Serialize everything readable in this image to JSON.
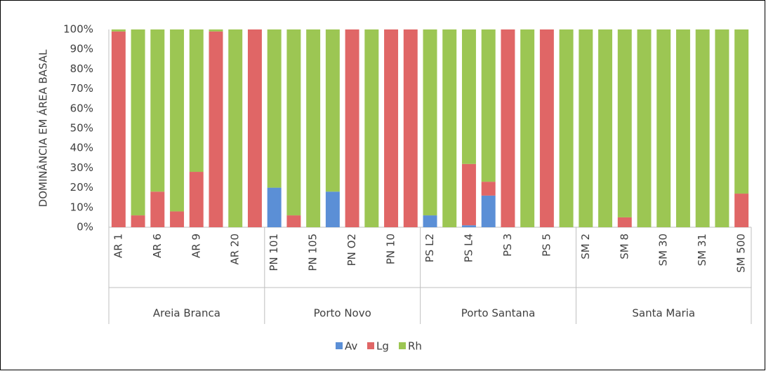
{
  "chart_data": {
    "type": "stacked_bar",
    "y_label": "DOMINÂNCIA EM ÁREA BASAL",
    "groups": [
      {
        "name": "Areia Branca",
        "categories": [
          "AR 1",
          null,
          "AR 6",
          null,
          "AR 9",
          null,
          "AR 20",
          null
        ]
      },
      {
        "name": "Porto Novo",
        "categories": [
          "PN 101",
          null,
          "PN 105",
          null,
          "PN O2",
          null,
          "PN 10",
          null
        ]
      },
      {
        "name": "Porto Santana",
        "categories": [
          "PS L2",
          null,
          "PS L4",
          null,
          "PS 3",
          null,
          "PS 5",
          null
        ]
      },
      {
        "name": "Santa Maria",
        "categories": [
          "SM 2",
          null,
          "SM 8",
          null,
          "SM 30",
          null,
          "SM 31",
          null,
          "SM 500"
        ]
      }
    ],
    "series": [
      {
        "name": "Av",
        "color": "#5b8fd6",
        "values": [
          0,
          0,
          0,
          0,
          0,
          0,
          0,
          0,
          20,
          0,
          0,
          18,
          0,
          0,
          0,
          0,
          6,
          0,
          1,
          16,
          0,
          0,
          0,
          0,
          0,
          0,
          0,
          0,
          0,
          0,
          0,
          0,
          0
        ]
      },
      {
        "name": "Lg",
        "color": "#e06666",
        "values": [
          99,
          6,
          18,
          8,
          28,
          99,
          0,
          100,
          0,
          6,
          0,
          0,
          100,
          0,
          100,
          100,
          0,
          0,
          31,
          7,
          100,
          0,
          100,
          0,
          0,
          0,
          5,
          0,
          0,
          0,
          0,
          0,
          17
        ]
      },
      {
        "name": "Rh",
        "color": "#9cc653",
        "values": [
          1,
          94,
          82,
          92,
          72,
          1,
          100,
          0,
          80,
          94,
          100,
          82,
          0,
          100,
          0,
          0,
          94,
          100,
          68,
          77,
          0,
          100,
          0,
          100,
          100,
          100,
          95,
          100,
          100,
          100,
          100,
          100,
          83
        ]
      }
    ],
    "ylim": [
      0,
      100
    ],
    "yticks": [
      {
        "value": 0,
        "label": "0%"
      },
      {
        "value": 10,
        "label": "10%"
      },
      {
        "value": 20,
        "label": "20%"
      },
      {
        "value": 30,
        "label": "30%"
      },
      {
        "value": 40,
        "label": "40%"
      },
      {
        "value": 50,
        "label": "50%"
      },
      {
        "value": 60,
        "label": "60%"
      },
      {
        "value": 70,
        "label": "70%"
      },
      {
        "value": 80,
        "label": "80%"
      },
      {
        "value": 90,
        "label": "90%"
      },
      {
        "value": 100,
        "label": "100%"
      }
    ],
    "grid": false,
    "legend": "bottom"
  }
}
